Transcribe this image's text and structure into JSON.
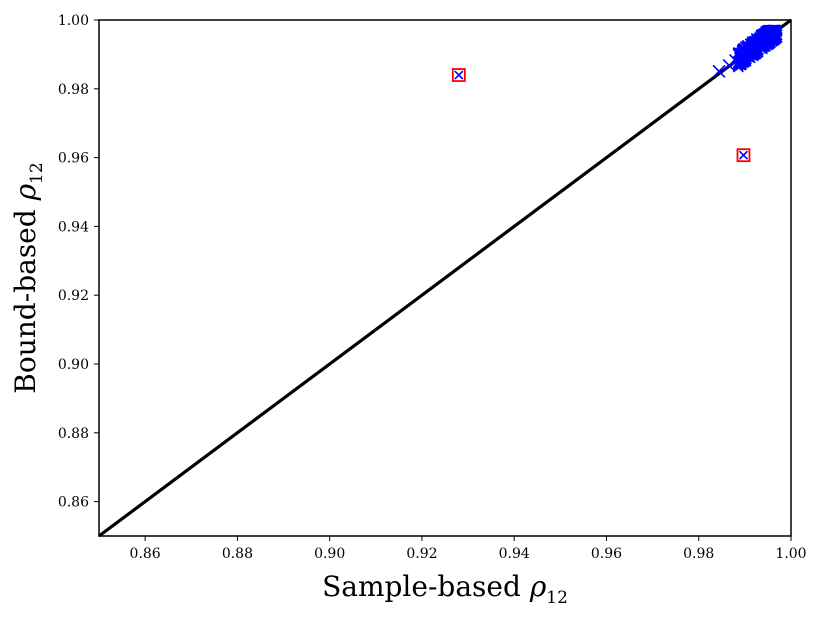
{
  "chart_data": {
    "type": "scatter",
    "xlabel": "Sample-based",
    "xlabel_symbol": "ρ",
    "xlabel_sub": "12",
    "ylabel": "Bound-based",
    "ylabel_symbol": "ρ",
    "ylabel_sub": "12",
    "xlim": [
      0.85,
      1.0
    ],
    "ylim": [
      0.85,
      1.0
    ],
    "x_ticks": [
      "0.86",
      "0.88",
      "0.90",
      "0.92",
      "0.94",
      "0.96",
      "0.98",
      "1.00"
    ],
    "y_ticks": [
      "0.86",
      "0.88",
      "0.90",
      "0.92",
      "0.94",
      "0.96",
      "0.98",
      "1.00"
    ],
    "grid": false,
    "legend": "none",
    "reference_line": {
      "from": [
        0.85,
        0.85
      ],
      "to": [
        1.0,
        1.0
      ],
      "color": "#000000"
    },
    "marker_color": "#0000ff",
    "outlier_box_color": "#ff0000",
    "cluster": {
      "x_range": [
        0.984,
        0.997
      ],
      "y_range": [
        0.985,
        0.997
      ],
      "count": 400
    },
    "points": [
      {
        "x": 0.9844,
        "y": 0.9851
      },
      {
        "x": 0.9866,
        "y": 0.9868
      },
      {
        "x": 0.988,
        "y": 0.9882
      },
      {
        "x": 0.989,
        "y": 0.99
      },
      {
        "x": 0.9951,
        "y": 0.9964
      }
    ],
    "outliers": [
      {
        "x": 0.928,
        "y": 0.984
      },
      {
        "x": 0.9897,
        "y": 0.9607
      }
    ]
  }
}
